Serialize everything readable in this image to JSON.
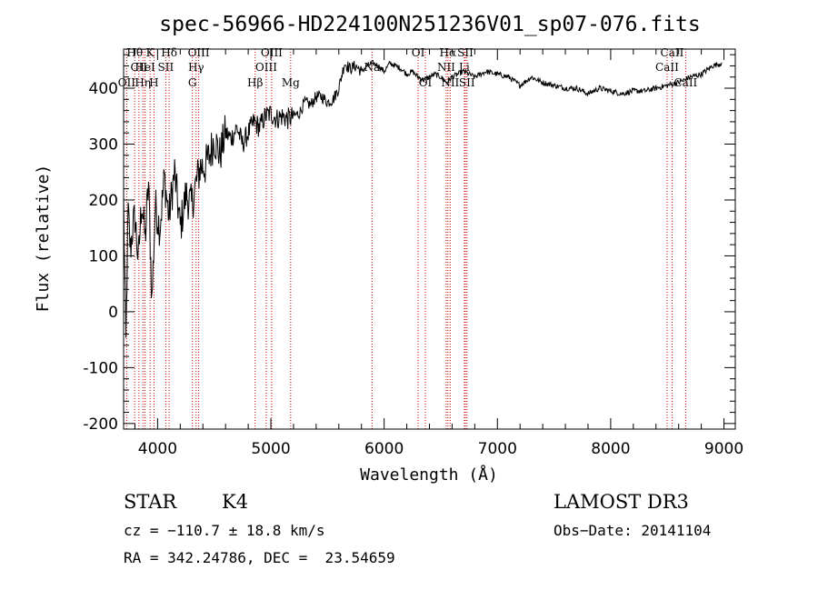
{
  "chart_data": {
    "type": "line",
    "title": "spec-56966-HD224100N251236V01_sp07-076.fits",
    "xlabel": "Wavelength (Å)",
    "ylabel": "Flux (relative)",
    "xlim": [
      3700,
      9100
    ],
    "ylim": [
      -210,
      470
    ],
    "xticks": [
      4000,
      5000,
      6000,
      7000,
      8000,
      9000
    ],
    "yticks": [
      -200,
      -100,
      0,
      100,
      200,
      300,
      400
    ],
    "grid": false,
    "line_color": "#000000",
    "marker_color": "#cc0000",
    "series": [
      {
        "name": "flux",
        "x": [
          3700,
          3720,
          3740,
          3760,
          3780,
          3800,
          3830,
          3860,
          3890,
          3920,
          3950,
          3980,
          4020,
          4060,
          4100,
          4150,
          4200,
          4250,
          4300,
          4340,
          4380,
          4420,
          4460,
          4500,
          4550,
          4600,
          4650,
          4700,
          4750,
          4800,
          4850,
          4900,
          4950,
          5000,
          5050,
          5100,
          5150,
          5200,
          5250,
          5300,
          5350,
          5400,
          5450,
          5500,
          5550,
          5600,
          5650,
          5700,
          5750,
          5800,
          5850,
          5900,
          5950,
          6000,
          6050,
          6100,
          6150,
          6200,
          6250,
          6300,
          6350,
          6400,
          6450,
          6500,
          6550,
          6600,
          6650,
          6700,
          6750,
          6800,
          6900,
          7000,
          7100,
          7200,
          7300,
          7400,
          7500,
          7600,
          7700,
          7800,
          7900,
          8000,
          8100,
          8200,
          8300,
          8400,
          8500,
          8600,
          8700,
          8800,
          8900,
          8980
        ],
        "y": [
          200,
          -60,
          180,
          110,
          150,
          170,
          90,
          200,
          130,
          230,
          20,
          190,
          150,
          240,
          170,
          250,
          150,
          210,
          190,
          230,
          260,
          260,
          280,
          310,
          280,
          320,
          310,
          330,
          300,
          320,
          340,
          330,
          350,
          355,
          345,
          350,
          345,
          350,
          355,
          375,
          370,
          385,
          385,
          375,
          380,
          400,
          445,
          435,
          440,
          430,
          440,
          445,
          440,
          430,
          445,
          440,
          435,
          425,
          430,
          420,
          415,
          420,
          425,
          420,
          410,
          420,
          425,
          430,
          425,
          420,
          430,
          425,
          420,
          405,
          420,
          410,
          405,
          400,
          400,
          390,
          400,
          395,
          390,
          395,
          395,
          400,
          405,
          410,
          420,
          425,
          440,
          445
        ]
      }
    ],
    "line_markers": [
      {
        "label": "Hθ",
        "wavelength": 3798,
        "row": 0
      },
      {
        "label": "CII",
        "wavelength": 3835,
        "row": 1
      },
      {
        "label": "OII",
        "wavelength": 3727,
        "row": 2
      },
      {
        "label": "K",
        "wavelength": 3934,
        "row": 0
      },
      {
        "label": "HeI",
        "wavelength": 3889,
        "row": 1
      },
      {
        "label": "Hη",
        "wavelength": 3870,
        "row": 2
      },
      {
        "label": "Hδ",
        "wavelength": 4102,
        "row": 0
      },
      {
        "label": "SII",
        "wavelength": 4072,
        "row": 1
      },
      {
        "label": "H",
        "wavelength": 3968,
        "row": 2
      },
      {
        "label": "OIII",
        "wavelength": 4363,
        "row": 0
      },
      {
        "label": "Hγ",
        "wavelength": 4340,
        "row": 1
      },
      {
        "label": "G",
        "wavelength": 4307,
        "row": 2
      },
      {
        "label": "Hβ",
        "wavelength": 4861,
        "row": 2
      },
      {
        "label": "OIII",
        "wavelength": 5007,
        "row": 0
      },
      {
        "label": "OIII",
        "wavelength": 4959,
        "row": 1
      },
      {
        "label": "Mg",
        "wavelength": 5175,
        "row": 2
      },
      {
        "label": "Na",
        "wavelength": 5893,
        "row": 1
      },
      {
        "label": "OI",
        "wavelength": 6300,
        "row": 0
      },
      {
        "label": "OI",
        "wavelength": 6364,
        "row": 2
      },
      {
        "label": "Hα",
        "wavelength": 6563,
        "row": 0
      },
      {
        "label": "NII",
        "wavelength": 6548,
        "row": 1
      },
      {
        "label": "NII",
        "wavelength": 6583,
        "row": 2
      },
      {
        "label": "SII",
        "wavelength": 6717,
        "row": 0
      },
      {
        "label": "Li",
        "wavelength": 6708,
        "row": 1
      },
      {
        "label": "SII",
        "wavelength": 6731,
        "row": 2
      },
      {
        "label": "CaII",
        "wavelength": 8542,
        "row": 0
      },
      {
        "label": "CaII",
        "wavelength": 8498,
        "row": 1
      },
      {
        "label": "CaII",
        "wavelength": 8662,
        "row": 2
      }
    ]
  },
  "info": {
    "object_class": "STAR",
    "subclass": "K4",
    "survey": "LAMOST DR3",
    "cz": "cz = −110.7 ± 18.8 km/s",
    "obs_date": "Obs−Date: 20141104",
    "coords": "RA = 342.24786, DEC =  23.54659"
  }
}
